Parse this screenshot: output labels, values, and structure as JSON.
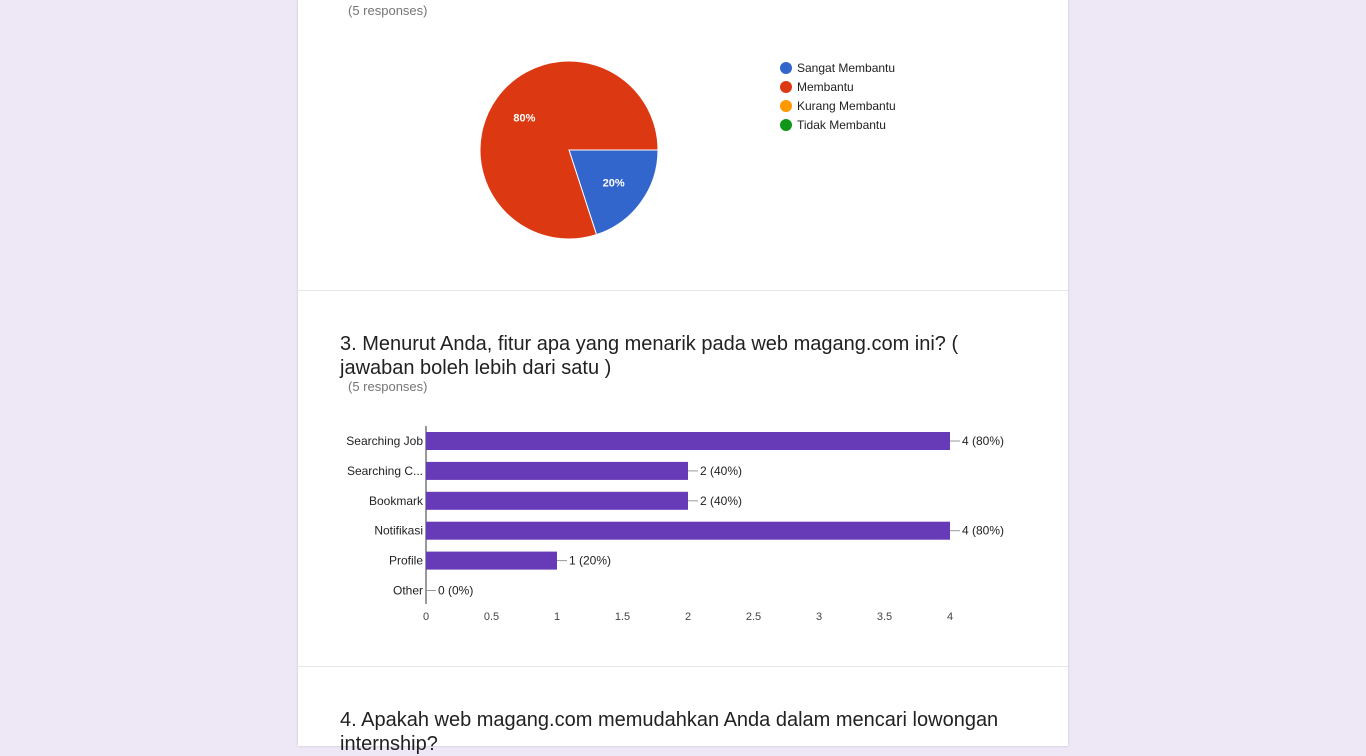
{
  "q2": {
    "title_fragment": "",
    "responses": "(5 responses)",
    "chart_data": {
      "type": "pie",
      "categories": [
        "Sangat Membantu",
        "Membantu",
        "Kurang Membantu",
        "Tidak Membantu"
      ],
      "values": [
        20,
        80,
        0,
        0
      ],
      "slice_labels": [
        "20%",
        "80%",
        "",
        ""
      ],
      "colors": [
        "#3366cc",
        "#dc3912",
        "#ff9900",
        "#109618"
      ],
      "legend_position": "right"
    }
  },
  "q3": {
    "title": "3. Menurut Anda, fitur apa yang menarik pada web magang.com ini? ( jawaban boleh lebih dari satu )",
    "responses": "(5 responses)",
    "chart_data": {
      "type": "bar",
      "orientation": "horizontal",
      "categories": [
        "Searching Job",
        "Searching C...",
        "Bookmark",
        "Notifikasi",
        "Profile",
        "Other"
      ],
      "values": [
        4,
        2,
        2,
        4,
        1,
        0
      ],
      "value_labels": [
        "4 (80%)",
        "2 (40%)",
        "2 (40%)",
        "4 (80%)",
        "1 (20%)",
        "0 (0%)"
      ],
      "xticks": [
        "0",
        "0.5",
        "1",
        "1.5",
        "2",
        "2.5",
        "3",
        "3.5",
        "4"
      ],
      "xlim": [
        0,
        4
      ],
      "color": "#673ab7",
      "grid": false
    }
  },
  "q4": {
    "title": "4. Apakah web magang.com memudahkan Anda dalam mencari lowongan internship?"
  }
}
